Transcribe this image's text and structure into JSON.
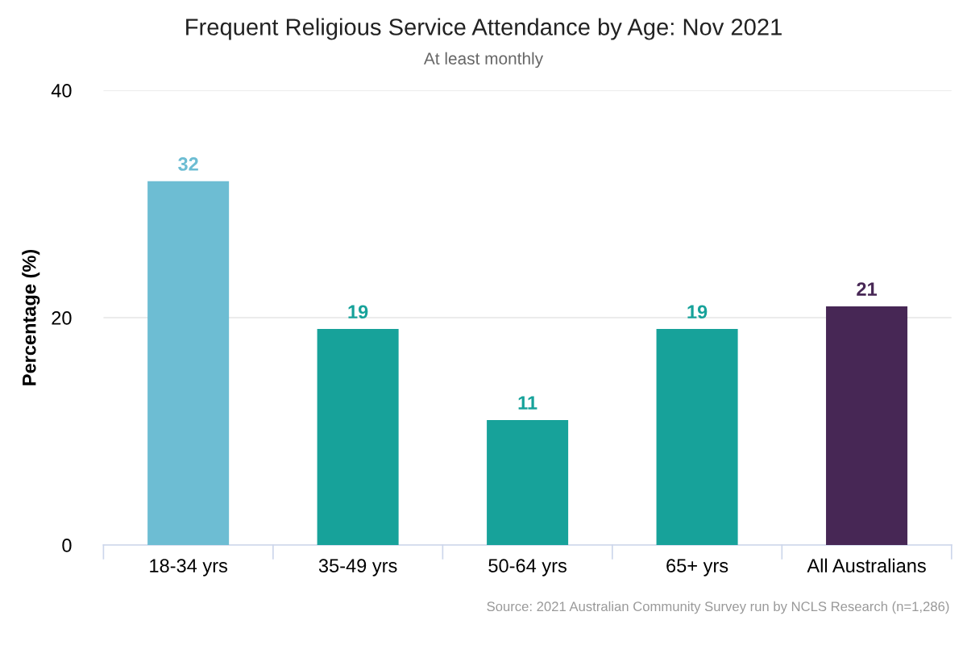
{
  "chart_data": {
    "type": "bar",
    "title": "Frequent Religious Service Attendance by Age: Nov 2021",
    "subtitle": "At least monthly",
    "ylabel": "Percentage (%)",
    "categories": [
      "18-34 yrs",
      "35-49 yrs",
      "50-64 yrs",
      "65+ yrs",
      "All Australians"
    ],
    "values": [
      32,
      19,
      11,
      19,
      21
    ],
    "colors": [
      "#6dbdd3",
      "#17a29a",
      "#17a29a",
      "#17a29a",
      "#472755"
    ],
    "ylim": [
      0,
      40
    ],
    "yticks": [
      0,
      20,
      40
    ],
    "grid": "y",
    "data_labels": true,
    "annotations": [
      "Source: 2021 Australian Community Survey run by NCLS Research (n=1,286)"
    ]
  }
}
